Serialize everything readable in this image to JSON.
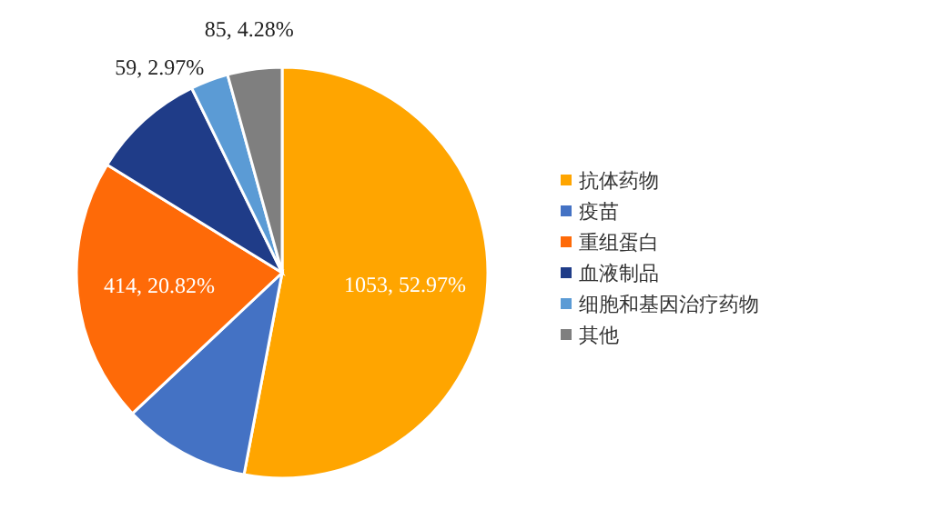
{
  "chart_data": {
    "type": "pie",
    "categories": [
      "抗体药物",
      "疫苗",
      "重组蛋白",
      "血液制品",
      "细胞和基因治疗药物",
      "其他"
    ],
    "values": [
      1053,
      199,
      414,
      178,
      59,
      85
    ],
    "colors": [
      "#ffa500",
      "#4472c4",
      "#fe6a08",
      "#1f3c88",
      "#5b9bd5",
      "#7f7f7f"
    ],
    "value_labels": [
      "1053, 52.97%",
      null,
      "414, 20.82%",
      null,
      "59, 2.97%",
      "85, 4.28%"
    ],
    "legend": "right"
  }
}
